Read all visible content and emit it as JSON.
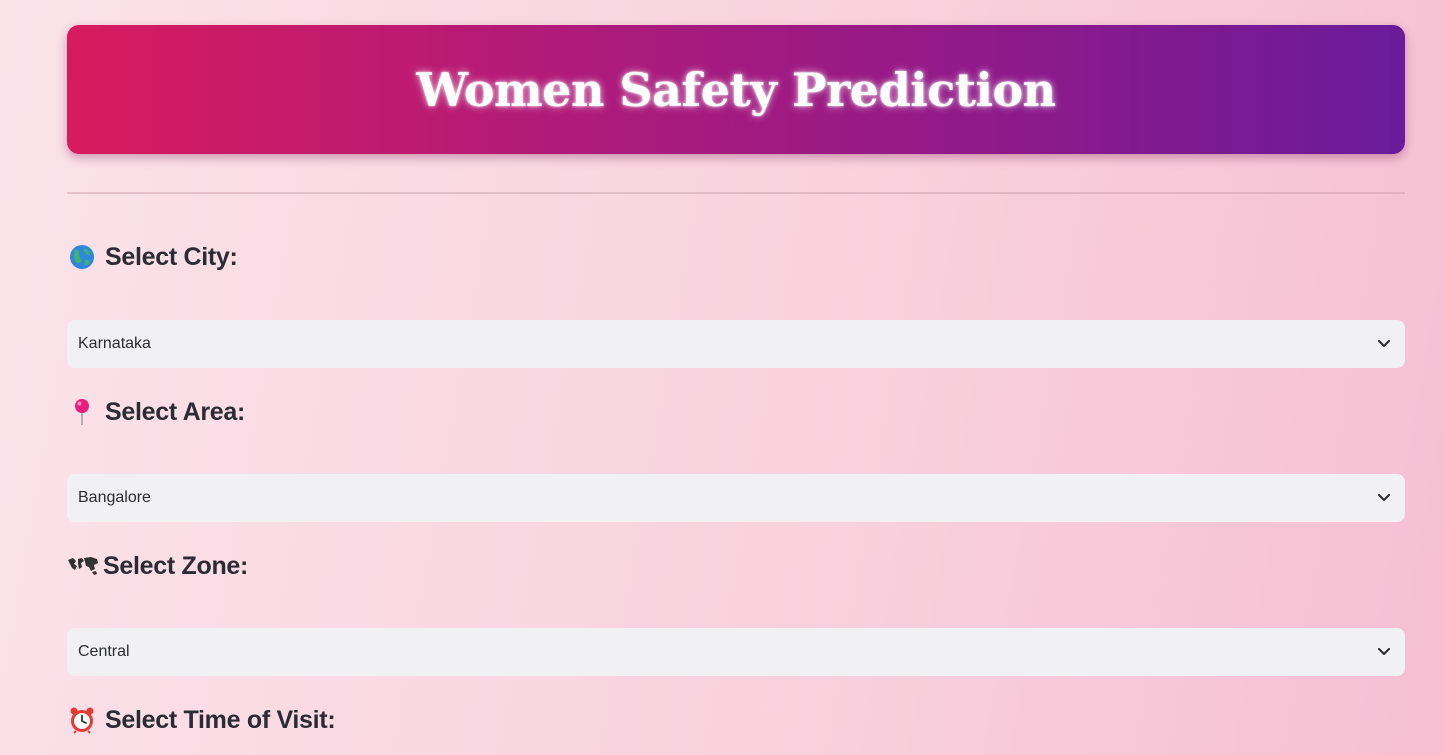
{
  "header": {
    "title": "Women Safety Prediction"
  },
  "fields": [
    {
      "label": "Select City:",
      "icon": "globe-icon",
      "selected": "Karnataka"
    },
    {
      "label": "Select Area:",
      "icon": "pin-icon",
      "selected": "Bangalore"
    },
    {
      "label": "Select Zone:",
      "icon": "world-map-icon",
      "selected": "Central"
    },
    {
      "label": "Select Time of Visit:",
      "icon": "alarm-clock-icon"
    }
  ],
  "colors": {
    "banner_start": "#d81b5e",
    "banner_end": "#6a1b9a",
    "background": "#f9d2de",
    "select_background": "#f1f1f4",
    "text": "#2b2b33"
  }
}
